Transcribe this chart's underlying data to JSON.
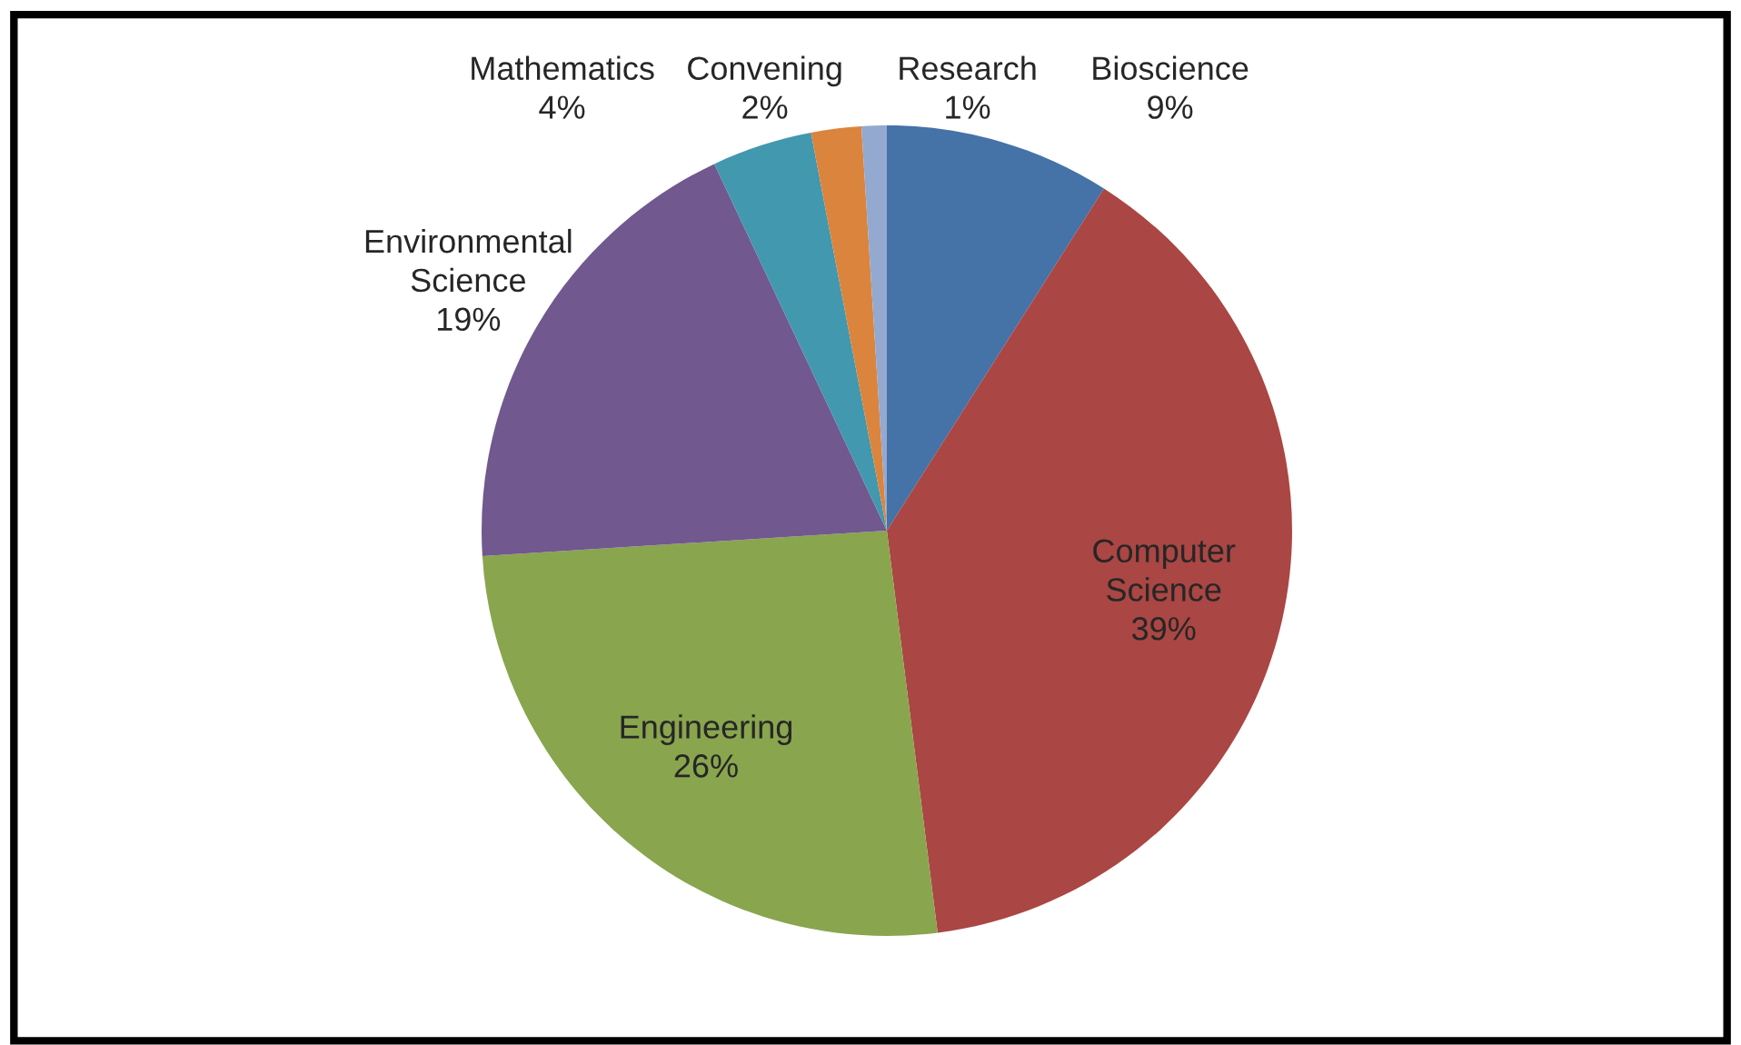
{
  "chart_data": {
    "type": "pie",
    "categories": [
      "Bioscience",
      "Computer\nScience",
      "Engineering",
      "Environmental\nScience",
      "Mathematics",
      "Convening",
      "Research"
    ],
    "values": [
      9,
      39,
      26,
      19,
      4,
      2,
      1
    ],
    "value_labels": [
      "9%",
      "39%",
      "26%",
      "19%",
      "4%",
      "2%",
      "1%"
    ],
    "colors": [
      "#4572a7",
      "#aa4643",
      "#89a54e",
      "#71588f",
      "#4198af",
      "#db843d",
      "#93a9cf"
    ]
  }
}
